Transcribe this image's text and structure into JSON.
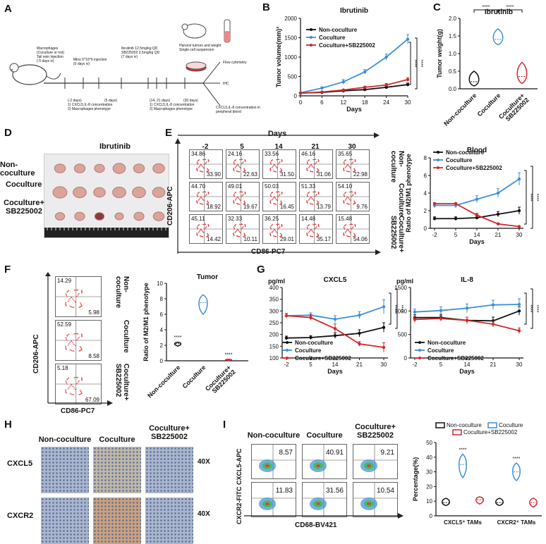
{
  "panels": {
    "A": "A",
    "B": "B",
    "C": "C",
    "D": "D",
    "E": "E",
    "F": "F",
    "G": "G",
    "H": "H",
    "I": "I"
  },
  "timeline": {
    "t1": "Macrophages\n(Coculture or not)\nTail vein injection\n(-5 days iv)",
    "t2": "Mino 5*10^6 injection\n(0 days iv)",
    "t3": "Ibrutinib 12.5mg/kg QD\nSB225002 2.5mg/kg QD\n(7 days iv)",
    "t4": "Harvest tumors and weight\nSingle cell suspension",
    "b1": "(-2 days)\n1) CXCL5,IL-8 concentration\n2) Macrophages phenotype",
    "b2": "(5 days)",
    "b3": "(14, 21 days)\n1) CXCL5,IL-8 concentration\n2) Macrophages phenotype",
    "b4": "(30 days)",
    "flow": "Flow cytometry",
    "ihc": "IHC",
    "blood": "CXCL5,IL-8 concentration in\nperipheral blood"
  },
  "legend": {
    "non": "Non-coculture",
    "co": "Coculture",
    "cosb": "Coculture+SB225002"
  },
  "colors": {
    "non": "#111111",
    "co": "#3d8fd8",
    "cosb": "#d0282d"
  },
  "groups": [
    "Non-coculture",
    "Coculture",
    "Coculture+\nSB225002"
  ],
  "D": {
    "title": "Ibrutinib",
    "rows": [
      "Non-coculture",
      "Coculture",
      "Coculture+\nSB225002"
    ]
  },
  "E": {
    "title": "Days",
    "days": [
      "-2",
      "5",
      "14",
      "21",
      "30"
    ],
    "ylabel": "CD206-APC",
    "xlabel": "CD86-PC7",
    "rowlabels": [
      "Non-\ncoculture",
      "Coculture",
      "Coculture+\nSB225002"
    ],
    "ul": [
      [
        "34.86",
        "24.16",
        "33.56",
        "46.16",
        "35.65"
      ],
      [
        "44.70",
        "49.01",
        "50.03",
        "51.33",
        "54.10"
      ],
      [
        "45.11",
        "32.33",
        "36.25",
        "14.48",
        "15.48"
      ]
    ],
    "lr": [
      [
        "33.90",
        "22.63",
        "31.50",
        "31.06",
        "22.98"
      ],
      [
        "18.92",
        "19.67",
        "16.45",
        "13.79",
        "9.76"
      ],
      [
        "14.42",
        "10.11",
        "29.01",
        "35.17",
        "54.06"
      ]
    ]
  },
  "F": {
    "ylabel": "CD206-APC",
    "xlabel": "CD86-PC7",
    "ul": [
      "14.29",
      "52.59",
      "5.18"
    ],
    "lr": [
      "5.98",
      "8.58",
      "67.09"
    ],
    "rowlabels": [
      "Non-\ncoculture",
      "Coculture",
      "Coculture+\nSB225002"
    ]
  },
  "H": {
    "cols": [
      "Non-coculture",
      "Coculture",
      "Coculture+\nSB225002"
    ],
    "rows": [
      "CXCL5",
      "CXCR2"
    ],
    "mag": "40X"
  },
  "I": {
    "cols": [
      "Non-coculture",
      "Coculture",
      "Coculture+\nSB225002"
    ],
    "rows": [
      "CXCL5-APC",
      "CXCR2-FITC"
    ],
    "xlabel": "CD68-BV421",
    "vals": [
      [
        "8.57",
        "40.91",
        "9.21"
      ],
      [
        "11.83",
        "31.56",
        "10.54"
      ]
    ]
  },
  "sig": {
    "s4": "****"
  },
  "chart_data": [
    {
      "id": "B",
      "type": "line",
      "title": "Ibrutinib",
      "xlabel": "Days",
      "ylabel": "Tumor volume(mm)³",
      "x": [
        0,
        6,
        12,
        18,
        24,
        30
      ],
      "xlim": [
        0,
        30
      ],
      "ylim": [
        0,
        2000
      ],
      "xticks": [
        0,
        6,
        12,
        18,
        24,
        30
      ],
      "yticks": [
        0,
        500,
        1000,
        1500,
        2000
      ],
      "series": [
        {
          "name": "Non-coculture",
          "color": "#111111",
          "values": [
            70,
            90,
            130,
            160,
            220,
            290
          ],
          "err": [
            10,
            15,
            20,
            25,
            30,
            40
          ]
        },
        {
          "name": "Coculture",
          "color": "#3d8fd8",
          "values": [
            80,
            200,
            360,
            620,
            1000,
            1460
          ],
          "err": [
            15,
            30,
            60,
            60,
            80,
            120
          ]
        },
        {
          "name": "Coculture+SB225002",
          "color": "#d0282d",
          "values": [
            70,
            100,
            150,
            220,
            280,
            420
          ],
          "err": [
            10,
            15,
            20,
            30,
            40,
            50
          ]
        }
      ],
      "annotations": [
        "****",
        "****"
      ]
    },
    {
      "id": "C",
      "type": "violin",
      "title": "Ibrutinib",
      "ylabel": "Tumor weight(g)",
      "categories": [
        "Non-coculture",
        "Coculture",
        "Coculture+\nSB225002"
      ],
      "ylim": [
        0.0,
        2.0
      ],
      "yticks": [
        0.0,
        0.5,
        1.0,
        1.5,
        2.0
      ],
      "medians": [
        0.2,
        1.4,
        0.35
      ],
      "mins": [
        0.08,
        1.25,
        0.15
      ],
      "maxs": [
        0.5,
        1.7,
        0.75
      ],
      "annotations": [
        "****",
        "****"
      ]
    },
    {
      "id": "E-blood",
      "type": "line",
      "title": "Blood",
      "xlabel": "Days",
      "ylabel": "Ratio of M2/M1 phenotype",
      "categories": [
        "-2",
        "5",
        "14",
        "21",
        "30"
      ],
      "ylim": [
        0,
        8
      ],
      "yticks": [
        0,
        2,
        4,
        6,
        8
      ],
      "series": [
        {
          "name": "Non-coculture",
          "color": "#111111",
          "values": [
            1.1,
            1.1,
            1.2,
            1.6,
            2.0
          ],
          "err": [
            0.2,
            0.2,
            0.2,
            0.3,
            0.4
          ]
        },
        {
          "name": "Coculture",
          "color": "#3d8fd8",
          "values": [
            2.6,
            2.6,
            3.3,
            4.0,
            5.6
          ],
          "err": [
            0.3,
            0.3,
            0.4,
            0.5,
            0.7
          ]
        },
        {
          "name": "Coculture+SB225002",
          "color": "#d0282d",
          "values": [
            2.8,
            2.8,
            1.5,
            0.5,
            0.2
          ],
          "err": [
            0.1,
            0.1,
            0.2,
            0.1,
            0.05
          ]
        }
      ],
      "annotations": [
        "****",
        "****"
      ]
    },
    {
      "id": "F-tumor",
      "type": "violin",
      "title": "Tumor",
      "ylabel": "Ratio of M2/M1 phenotype",
      "categories": [
        "Non-coculture",
        "Coculture",
        "Coculture+\nSB225002"
      ],
      "ylim": [
        0,
        10
      ],
      "yticks": [
        0,
        2,
        4,
        6,
        8,
        10
      ],
      "medians": [
        2.2,
        7.5,
        0.1
      ],
      "mins": [
        1.9,
        6.0,
        0.05
      ],
      "maxs": [
        2.4,
        8.5,
        0.2
      ],
      "annotations": [
        "****",
        "****"
      ]
    },
    {
      "id": "G-CXCL5",
      "type": "line",
      "title": "CXCL5",
      "xlabel": "Days",
      "ylabel": "pg/ml",
      "categories": [
        "-2",
        "5",
        "14",
        "21",
        "30"
      ],
      "ylim": [
        100,
        400
      ],
      "yticks": [
        100,
        150,
        200,
        250,
        300,
        350,
        400
      ],
      "series": [
        {
          "name": "Non-coculture",
          "color": "#111111",
          "values": [
            185,
            187,
            195,
            205,
            230
          ],
          "err": [
            8,
            8,
            12,
            15,
            20
          ]
        },
        {
          "name": "Coculture",
          "color": "#3d8fd8",
          "values": [
            280,
            282,
            265,
            282,
            318
          ],
          "err": [
            10,
            10,
            15,
            15,
            30
          ]
        },
        {
          "name": "Coculture+SB225002",
          "color": "#d0282d",
          "values": [
            280,
            272,
            225,
            160,
            145
          ],
          "err": [
            10,
            12,
            20,
            10,
            20
          ]
        }
      ],
      "annotations": [
        "****",
        "****"
      ]
    },
    {
      "id": "G-IL8",
      "type": "line",
      "title": "IL-8",
      "xlabel": "Days",
      "ylabel": "pg/ml",
      "categories": [
        "-2",
        "5",
        "14",
        "21",
        "30"
      ],
      "ylim": [
        0,
        1500
      ],
      "yticks": [
        0,
        500,
        1000,
        1500
      ],
      "series": [
        {
          "name": "Non-coculture",
          "color": "#111111",
          "values": [
            860,
            860,
            800,
            790,
            1000
          ],
          "err": [
            60,
            70,
            70,
            80,
            90
          ]
        },
        {
          "name": "Coculture",
          "color": "#3d8fd8",
          "values": [
            980,
            1010,
            1060,
            1130,
            1140
          ],
          "err": [
            60,
            80,
            90,
            100,
            120
          ]
        },
        {
          "name": "Coculture+SB225002",
          "color": "#d0282d",
          "values": [
            820,
            840,
            800,
            720,
            580
          ],
          "err": [
            60,
            60,
            70,
            60,
            60
          ]
        }
      ],
      "annotations": [
        "****",
        "****"
      ]
    },
    {
      "id": "I-pct",
      "type": "violin",
      "ylabel": "Percentage(%)",
      "categories": [
        "CXCL5⁺ TAMs",
        "CXCR2⁺ TAMs"
      ],
      "ylim": [
        0,
        50
      ],
      "yticks": [
        0,
        10,
        20,
        30,
        40,
        50
      ],
      "groups": [
        {
          "name": "Non-coculture",
          "color": "#111111",
          "medians": [
            9,
            9
          ],
          "mins": [
            7,
            7
          ],
          "maxs": [
            12,
            12
          ]
        },
        {
          "name": "Coculture",
          "color": "#3d8fd8",
          "medians": [
            35,
            30
          ],
          "mins": [
            26,
            24
          ],
          "maxs": [
            42,
            36
          ]
        },
        {
          "name": "Coculture+SB225002",
          "color": "#d0282d",
          "medians": [
            11,
            9
          ],
          "mins": [
            8,
            6
          ],
          "maxs": [
            13,
            12
          ]
        }
      ],
      "annotations": [
        "****",
        "****"
      ]
    }
  ]
}
